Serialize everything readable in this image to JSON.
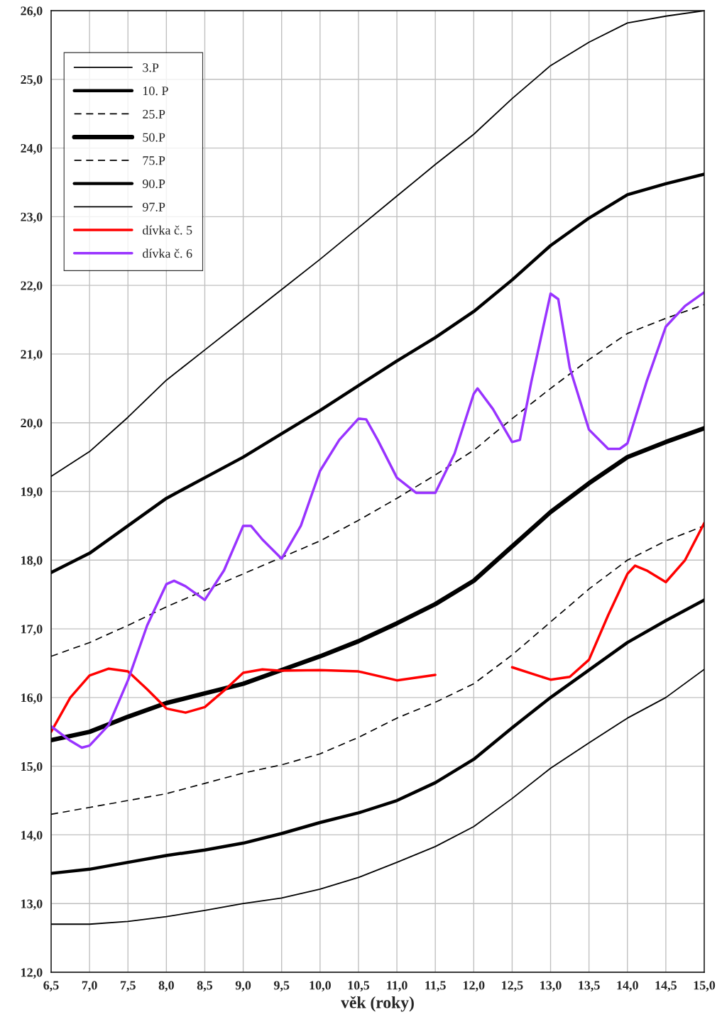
{
  "chart_data": {
    "type": "line",
    "xlabel": "věk (roky)",
    "grid": true,
    "legend": "top left",
    "marker": "none",
    "xlim": [
      6.5,
      15.0
    ],
    "ylim": [
      12.0,
      26.0
    ],
    "xticks": [
      {
        "value": 6.5,
        "label": "6,5"
      },
      {
        "value": 7.0,
        "label": "7,0"
      },
      {
        "value": 7.5,
        "label": "7,5"
      },
      {
        "value": 8.0,
        "label": "8,0"
      },
      {
        "value": 8.5,
        "label": "8,5"
      },
      {
        "value": 9.0,
        "label": "9,0"
      },
      {
        "value": 9.5,
        "label": "9,5"
      },
      {
        "value": 10.0,
        "label": "10,0"
      },
      {
        "value": 10.5,
        "label": "10,5"
      },
      {
        "value": 11.0,
        "label": "11,0"
      },
      {
        "value": 11.5,
        "label": "11,5"
      },
      {
        "value": 12.0,
        "label": "12,0"
      },
      {
        "value": 12.5,
        "label": "12,5"
      },
      {
        "value": 13.0,
        "label": "13,0"
      },
      {
        "value": 13.5,
        "label": "13,5"
      },
      {
        "value": 14.0,
        "label": "14,0"
      },
      {
        "value": 14.5,
        "label": "14,5"
      },
      {
        "value": 15.0,
        "label": "15,0"
      }
    ],
    "yticks": [
      {
        "value": 12,
        "label": "12,0"
      },
      {
        "value": 13,
        "label": "13,0"
      },
      {
        "value": 14,
        "label": "14,0"
      },
      {
        "value": 15,
        "label": "15,0"
      },
      {
        "value": 16,
        "label": "16,0"
      },
      {
        "value": 17,
        "label": "17,0"
      },
      {
        "value": 18,
        "label": "18,0"
      },
      {
        "value": 19,
        "label": "19,0"
      },
      {
        "value": 20,
        "label": "20,0"
      },
      {
        "value": 21,
        "label": "21,0"
      },
      {
        "value": 22,
        "label": "22,0"
      },
      {
        "value": 23,
        "label": "23,0"
      },
      {
        "value": 24,
        "label": "24,0"
      },
      {
        "value": 25,
        "label": "25,0"
      },
      {
        "value": 26,
        "label": "26,0"
      }
    ],
    "x": [
      6.5,
      7.0,
      7.5,
      8.0,
      8.5,
      9.0,
      9.5,
      10.0,
      10.5,
      11.0,
      11.5,
      12.0,
      12.5,
      13.0,
      13.5,
      14.0,
      14.5,
      15.0
    ],
    "series": [
      {
        "name": "3.P",
        "color": "#000000",
        "line_style": "solid",
        "values": [
          12.7,
          12.7,
          12.74,
          12.81,
          12.9,
          13.0,
          13.08,
          13.21,
          13.38,
          13.6,
          13.83,
          14.12,
          14.53,
          14.97,
          15.34,
          15.7,
          16.0,
          16.41
        ]
      },
      {
        "name": "10. P",
        "color": "#000000",
        "line_style": "solid",
        "values": [
          13.44,
          13.5,
          13.6,
          13.7,
          13.78,
          13.88,
          14.02,
          14.18,
          14.32,
          14.5,
          14.76,
          15.1,
          15.56,
          16.0,
          16.4,
          16.8,
          17.12,
          17.42
        ]
      },
      {
        "name": "25.P",
        "color": "#000000",
        "line_style": "dashed",
        "values": [
          14.3,
          14.4,
          14.5,
          14.6,
          14.75,
          14.9,
          15.02,
          15.18,
          15.42,
          15.7,
          15.93,
          16.2,
          16.62,
          17.1,
          17.58,
          18.0,
          18.28,
          18.5
        ]
      },
      {
        "name": "50.P",
        "color": "#000000",
        "line_style": "solid",
        "values": [
          15.38,
          15.5,
          15.72,
          15.92,
          16.06,
          16.2,
          16.4,
          16.6,
          16.82,
          17.08,
          17.36,
          17.7,
          18.2,
          18.7,
          19.12,
          19.5,
          19.72,
          19.92
        ]
      },
      {
        "name": "75.P",
        "color": "#000000",
        "line_style": "dashed",
        "values": [
          16.6,
          16.8,
          17.05,
          17.32,
          17.56,
          17.8,
          18.04,
          18.28,
          18.58,
          18.9,
          19.24,
          19.6,
          20.06,
          20.5,
          20.92,
          21.3,
          21.52,
          21.72
        ]
      },
      {
        "name": "90.P",
        "color": "#000000",
        "line_style": "solid",
        "values": [
          17.82,
          18.1,
          18.5,
          18.9,
          19.2,
          19.5,
          19.84,
          20.18,
          20.54,
          20.9,
          21.24,
          21.62,
          22.08,
          22.58,
          22.98,
          23.32,
          23.48,
          23.62
        ]
      },
      {
        "name": "97.P",
        "color": "#000000",
        "line_style": "solid",
        "values": [
          19.22,
          19.58,
          20.08,
          20.62,
          21.06,
          21.5,
          21.94,
          22.38,
          22.84,
          23.3,
          23.76,
          24.2,
          24.72,
          25.2,
          25.54,
          25.82,
          25.92,
          26.0
        ]
      },
      {
        "name": "dívka č. 5",
        "color": "#ff0000",
        "line_style": "solid",
        "x": [
          6.5,
          6.75,
          7.0,
          7.25,
          7.5,
          7.75,
          8.0,
          8.25,
          8.5,
          8.75,
          9.0,
          9.25,
          9.5,
          10.0,
          10.5,
          11.0,
          11.5,
          12.0,
          12.5,
          13.0,
          13.25,
          13.5,
          13.75,
          14.0,
          14.1,
          14.25,
          14.5,
          14.75,
          15.0
        ],
        "values": [
          15.5,
          16.0,
          16.32,
          16.42,
          16.38,
          16.12,
          15.84,
          15.78,
          15.86,
          16.1,
          16.36,
          16.41,
          16.39,
          16.4,
          16.38,
          16.25,
          16.33,
          null,
          16.44,
          16.26,
          16.3,
          16.55,
          17.2,
          17.8,
          17.92,
          17.85,
          17.68,
          18.0,
          18.54
        ]
      },
      {
        "name": "dívka č. 6",
        "color": "#9933ff",
        "line_style": "solid",
        "x": [
          6.5,
          6.75,
          6.9,
          7.0,
          7.25,
          7.5,
          7.75,
          8.0,
          8.1,
          8.25,
          8.5,
          8.75,
          9.0,
          9.1,
          9.25,
          9.5,
          9.75,
          10.0,
          10.25,
          10.5,
          10.6,
          10.75,
          11.0,
          11.25,
          11.5,
          11.75,
          12.0,
          12.05,
          12.25,
          12.5,
          12.6,
          12.75,
          13.0,
          13.1,
          13.25,
          13.5,
          13.75,
          13.9,
          14.0,
          14.25,
          14.5,
          14.75,
          15.0
        ],
        "values": [
          15.58,
          15.37,
          15.27,
          15.3,
          15.6,
          16.25,
          17.05,
          17.65,
          17.7,
          17.62,
          17.42,
          17.85,
          18.5,
          18.5,
          18.3,
          18.02,
          18.5,
          19.3,
          19.75,
          20.06,
          20.05,
          19.75,
          19.2,
          18.98,
          18.98,
          19.55,
          20.42,
          20.5,
          20.2,
          19.72,
          19.75,
          20.6,
          21.88,
          21.8,
          20.8,
          19.9,
          19.62,
          19.62,
          19.7,
          20.6,
          21.4,
          21.7,
          21.9
        ]
      }
    ]
  }
}
